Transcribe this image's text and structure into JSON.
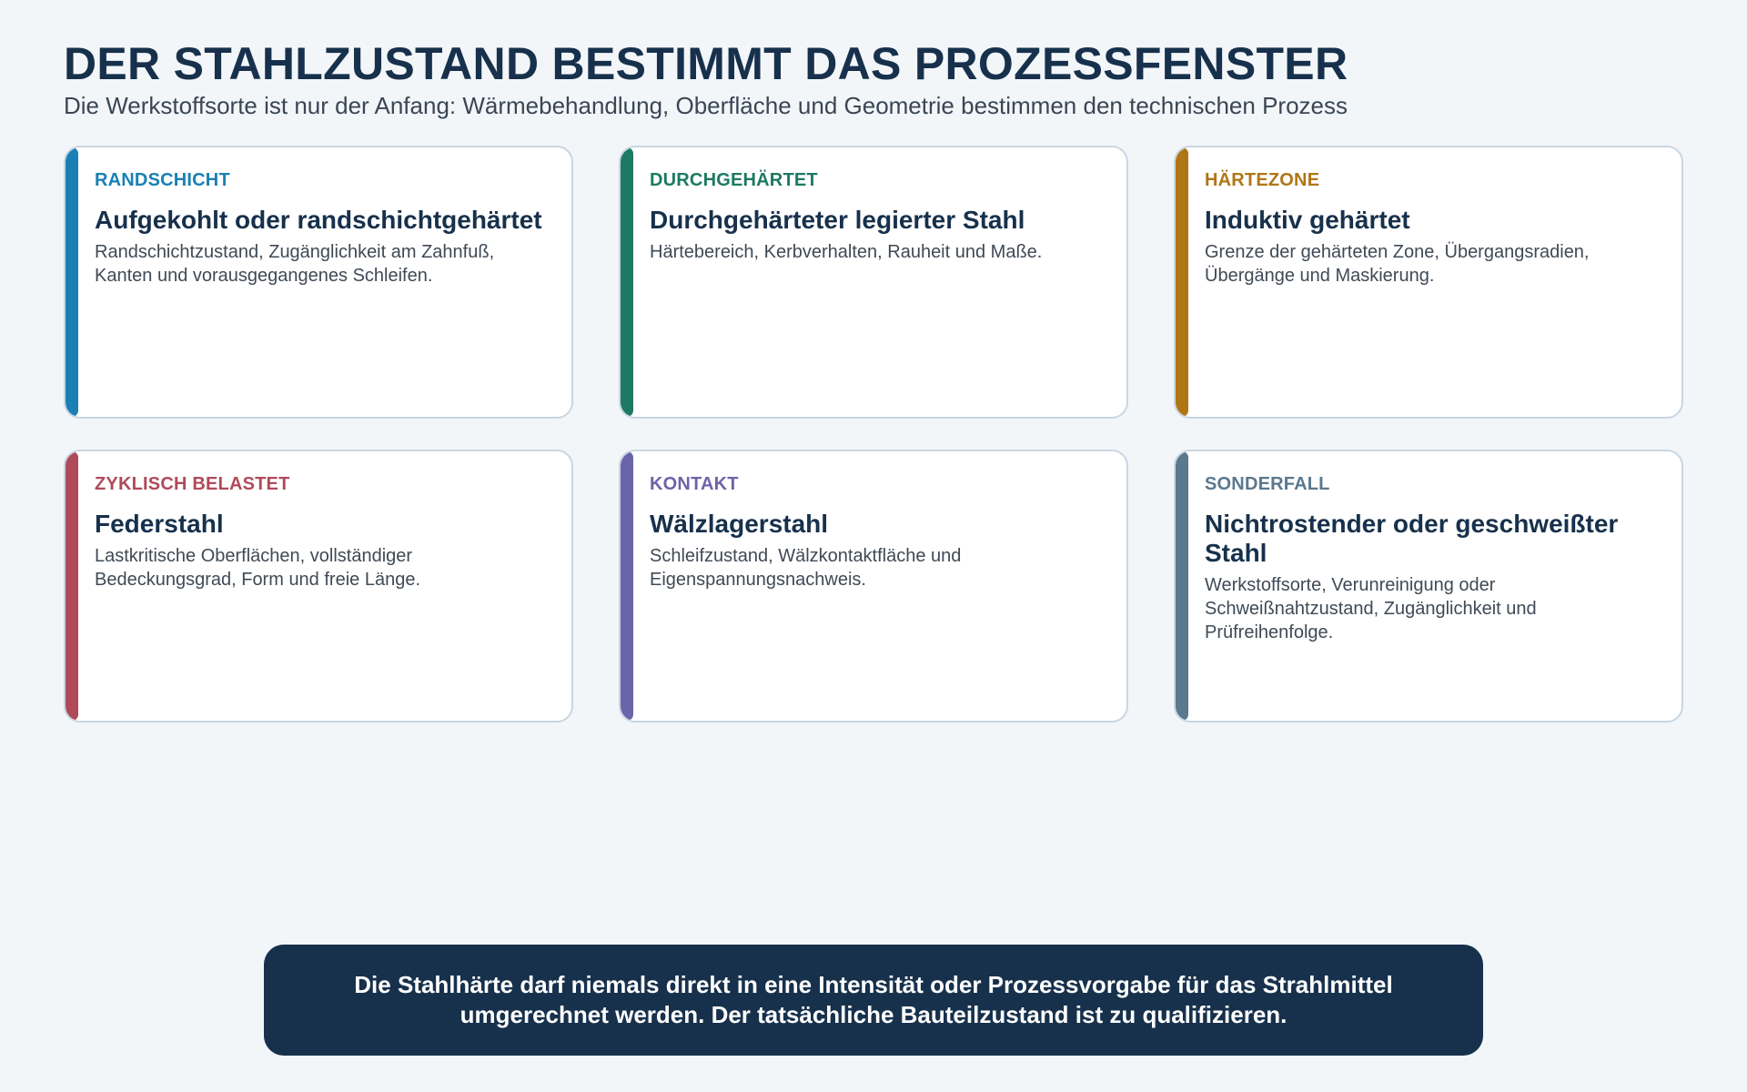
{
  "header": {
    "title": "DER STAHLZUSTAND BESTIMMT DAS PROZESSFENSTER",
    "subtitle": "Die Werkstoffsorte ist nur der Anfang: Wärmebehandlung, Oberfläche und Geometrie bestimmen den technischen Prozess"
  },
  "cards": [
    {
      "kicker": "RANDSCHICHT",
      "title": "Aufgekohlt oder randschichtgehärtet",
      "text": "Randschichtzustand, Zugänglichkeit am Zahnfuß, Kanten und vorausgegangenes Schleifen.",
      "color": "#1a80b4"
    },
    {
      "kicker": "DURCHGEHÄRTET",
      "title": "Durchgehärteter legierter Stahl",
      "text": "Härtebereich, Kerbverhalten, Rauheit und Maße.",
      "color": "#1d7a62"
    },
    {
      "kicker": "HÄRTEZONE",
      "title": "Induktiv gehärtet",
      "text": "Grenze der gehärteten Zone, Übergangsradien, Übergänge und Maskierung.",
      "color": "#b07616"
    },
    {
      "kicker": "ZYKLISCH BELASTET",
      "title": "Federstahl",
      "text": "Lastkritische Oberflächen, vollständiger Bedeckungsgrad, Form und freie Länge.",
      "color": "#b04a5a"
    },
    {
      "kicker": "KONTAKT",
      "title": "Wälzlagerstahl",
      "text": "Schleifzustand, Wälzkontaktfläche und Eigenspannungsnachweis.",
      "color": "#6c64a8"
    },
    {
      "kicker": "SONDERFALL",
      "title": "Nichtrostender oder geschweißter Stahl",
      "text": "Werkstoffsorte, Verunreinigung oder Schweißnahtzustand, Zugänglichkeit und Prüfreihenfolge.",
      "color": "#5a788e"
    }
  ],
  "footer": {
    "text": "Die Stahlhärte darf niemals direkt in eine Intensität oder Prozessvorgabe für das Strahlmittel umgerechnet werden. Der tatsächliche Bauteilzustand ist zu qualifizieren."
  }
}
